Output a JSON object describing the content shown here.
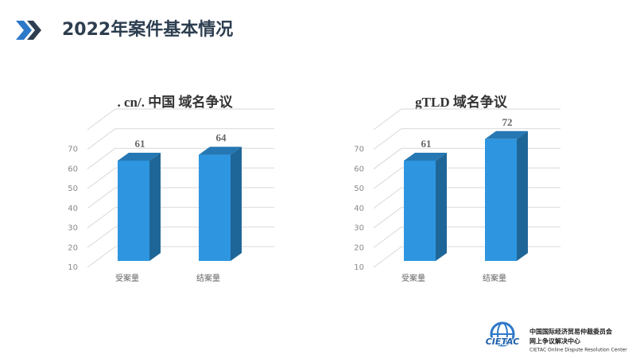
{
  "slide": {
    "title": "2022年案件基本情况"
  },
  "chart_data": [
    {
      "type": "bar3d",
      "title": ". cn/. 中国  域名争议",
      "categories": [
        "受案量",
        "结案量"
      ],
      "values": [
        61,
        64
      ],
      "color": "#2e96e0",
      "ylim": [
        10,
        80
      ],
      "yticks": [
        10,
        20,
        30,
        40,
        50,
        60,
        70
      ],
      "grid": true
    },
    {
      "type": "bar3d",
      "title": "gTLD 域名争议",
      "categories": [
        "受案量",
        "结案量"
      ],
      "values": [
        61,
        72
      ],
      "color": "#2e96e0",
      "ylim": [
        10,
        80
      ],
      "yticks": [
        10,
        20,
        30,
        40,
        50,
        60,
        70
      ],
      "grid": true
    }
  ],
  "logo": {
    "name": "CIETAC",
    "lines": [
      "中国国际经济贸易仲裁委员会",
      "网上争议解决中心",
      "CIETAC Online Dispute Resolution Center"
    ]
  }
}
